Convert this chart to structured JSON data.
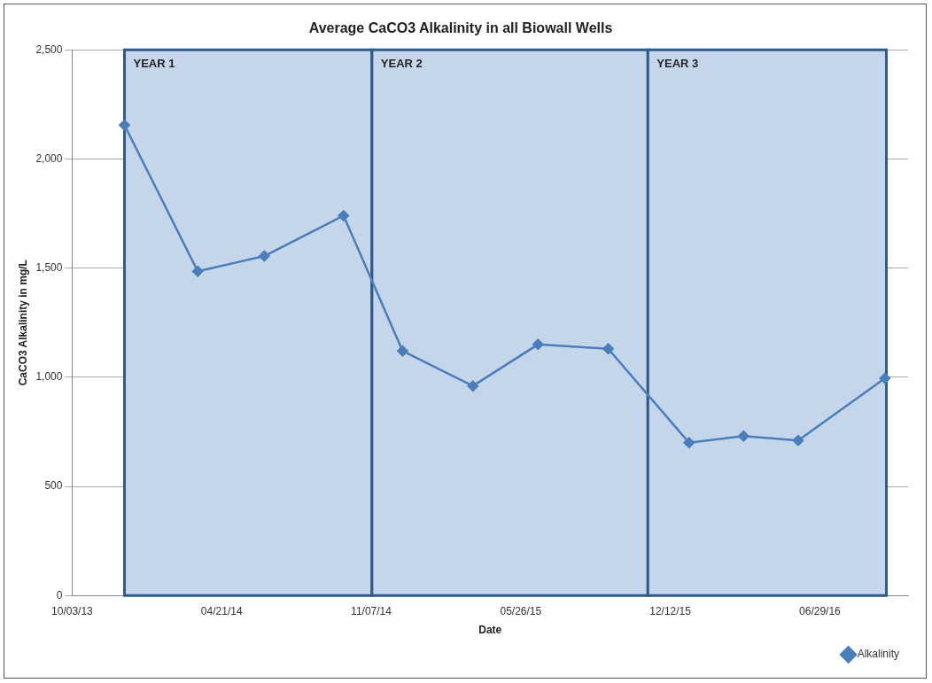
{
  "chart_data": {
    "type": "line",
    "title": "Average CaCO3 Alkalinity in all Biowall Wells",
    "xlabel": "Date",
    "ylabel": "CaCO3 Alkalinity in mg/L",
    "x": [
      "2013-12-12",
      "2014-03-20",
      "2014-06-17",
      "2014-10-01",
      "2014-12-19",
      "2015-03-23",
      "2015-06-18",
      "2015-09-20",
      "2016-01-06",
      "2016-03-19",
      "2016-05-31",
      "2016-09-24"
    ],
    "series": [
      {
        "name": "Alkalinity",
        "color": "#4a7ebb",
        "values": [
          2155,
          1485,
          1555,
          1740,
          1120,
          960,
          1150,
          1130,
          700,
          730,
          710,
          995
        ]
      }
    ],
    "xlim": [
      "2013-10-03",
      "2016-10-25"
    ],
    "xticks": [
      {
        "value": "2013-10-03",
        "label": "10/03/13"
      },
      {
        "value": "2014-04-21",
        "label": "04/21/14"
      },
      {
        "value": "2014-11-07",
        "label": "11/07/14"
      },
      {
        "value": "2015-05-26",
        "label": "05/26/15"
      },
      {
        "value": "2015-12-12",
        "label": "12/12/15"
      },
      {
        "value": "2016-06-29",
        "label": "06/29/16"
      }
    ],
    "ylim": [
      0,
      2500
    ],
    "yticks": [
      {
        "value": 0,
        "label": "0"
      },
      {
        "value": 500,
        "label": "500"
      },
      {
        "value": 1000,
        "label": "1,000"
      },
      {
        "value": 1500,
        "label": "1,500"
      },
      {
        "value": 2000,
        "label": "2,000"
      },
      {
        "value": 2500,
        "label": "2,500"
      }
    ],
    "bands": [
      {
        "axis": "x",
        "from": "2013-12-12",
        "to": "2014-11-08",
        "label": "YEAR 1",
        "color": "#c6d6ea"
      },
      {
        "axis": "x",
        "from": "2014-11-08",
        "to": "2015-11-12",
        "label": "YEAR 2",
        "color": "#c6d6ea"
      },
      {
        "axis": "x",
        "from": "2015-11-12",
        "to": "2016-09-26",
        "label": "YEAR 3",
        "color": "#c6d6ea"
      }
    ],
    "grid": "y",
    "legend": "bottom right",
    "marker": "diamond",
    "line_style": "solid"
  }
}
